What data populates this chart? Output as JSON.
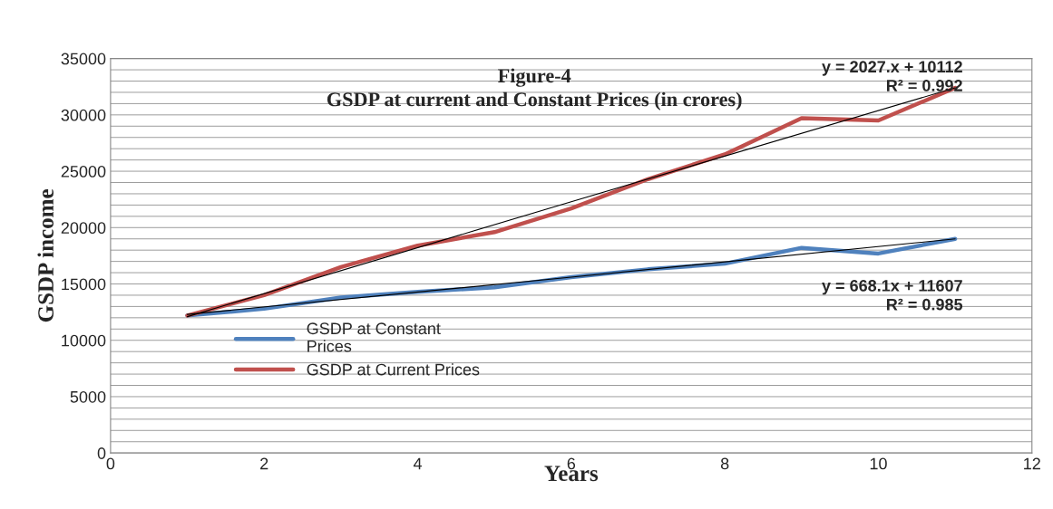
{
  "chart_data": {
    "type": "line",
    "title": "Figure-4",
    "subtitle": "GSDP at current and Constant Prices (in crores)",
    "xlabel": "Years",
    "ylabel": "GSDP income",
    "x": [
      1,
      2,
      3,
      4,
      5,
      6,
      7,
      8,
      9,
      10,
      11
    ],
    "series": [
      {
        "name": "GSDP at Constant\nPrices",
        "color": "#4f81bd",
        "values": [
          12200,
          12800,
          13800,
          14300,
          14700,
          15600,
          16300,
          16800,
          18200,
          17700,
          19000
        ]
      },
      {
        "name": "GSDP at Current Prices",
        "color": "#c0504d",
        "values": [
          12200,
          14000,
          16500,
          18400,
          19600,
          21700,
          24300,
          26500,
          29700,
          29500,
          32400
        ]
      },
      {
        "type": "line",
        "color": "#000000",
        "x": [
          1,
          6,
          11
        ],
        "values": [
          12100,
          22300,
          32400
        ]
      },
      {
        "type": "line",
        "color": "#000000",
        "x": [
          1,
          6,
          11
        ],
        "values": [
          12300,
          15600,
          19000
        ]
      }
    ],
    "annotations": [
      "y = 2027.x + 10112\nR² = 0.992",
      "y = 668.1x + 11607\nR² = 0.985"
    ],
    "xlim": [
      0,
      12
    ],
    "xticks": [
      0,
      2,
      4,
      6,
      8,
      10,
      12
    ],
    "ylim": [
      0,
      35000
    ],
    "yticks": [
      0,
      {
        "value": 1000,
        "label": null
      },
      {
        "value": 2000,
        "label": null
      },
      {
        "value": 3000,
        "label": null
      },
      {
        "value": 4000,
        "label": null
      },
      5000,
      {
        "value": 6000,
        "label": null
      },
      {
        "value": 7000,
        "label": null
      },
      {
        "value": 8000,
        "label": null
      },
      {
        "value": 9000,
        "label": null
      },
      10000,
      {
        "value": 11000,
        "label": null
      },
      {
        "value": 12000,
        "label": null
      },
      {
        "value": 13000,
        "label": null
      },
      {
        "value": 14000,
        "label": null
      },
      15000,
      {
        "value": 16000,
        "label": null
      },
      {
        "value": 17000,
        "label": null
      },
      {
        "value": 18000,
        "label": null
      },
      {
        "value": 19000,
        "label": null
      },
      20000,
      {
        "value": 21000,
        "label": null
      },
      {
        "value": 22000,
        "label": null
      },
      {
        "value": 23000,
        "label": null
      },
      {
        "value": 24000,
        "label": null
      },
      25000,
      {
        "value": 26000,
        "label": null
      },
      {
        "value": 27000,
        "label": null
      },
      {
        "value": 28000,
        "label": null
      },
      {
        "value": 29000,
        "label": null
      },
      30000,
      {
        "value": 31000,
        "label": null
      },
      {
        "value": 32000,
        "label": null
      },
      {
        "value": 33000,
        "label": null
      },
      {
        "value": 34000,
        "label": null
      },
      35000
    ],
    "grid": "y",
    "legend": "left"
  }
}
